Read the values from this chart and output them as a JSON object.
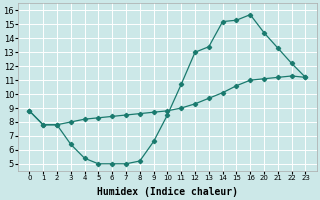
{
  "xlabel": "Humidex (Indice chaleur)",
  "bg_color": "#cce8e8",
  "grid_color": "#ffffff",
  "line_color": "#1a7a6e",
  "marker_color": "#1a7a6e",
  "ylim": [
    4.5,
    16.5
  ],
  "yticks": [
    5,
    6,
    7,
    8,
    9,
    10,
    11,
    12,
    13,
    14,
    15,
    16
  ],
  "xtick_labels": [
    "0",
    "1",
    "2",
    "3",
    "4",
    "5",
    "6",
    "7",
    "8",
    "9",
    "10",
    "11",
    "12",
    "13",
    "14",
    "15",
    "16",
    "20",
    "21",
    "22",
    "23"
  ],
  "line1_idx": [
    0,
    1,
    2,
    3,
    4,
    5,
    6,
    7,
    8,
    9,
    10,
    11,
    12,
    13,
    14,
    15,
    16,
    17,
    18,
    19,
    20
  ],
  "line1_y": [
    8.8,
    7.8,
    7.8,
    8.0,
    8.2,
    8.3,
    8.4,
    8.5,
    8.6,
    8.7,
    8.8,
    9.0,
    9.3,
    9.7,
    10.1,
    10.6,
    11.0,
    11.1,
    11.2,
    11.3,
    11.2
  ],
  "line2_idx": [
    0,
    1,
    2,
    3,
    4,
    5,
    6,
    7,
    8,
    9,
    10,
    11,
    12,
    13,
    14,
    15,
    16,
    17,
    18,
    19,
    20
  ],
  "line2_y": [
    8.8,
    7.8,
    7.8,
    6.4,
    5.4,
    5.0,
    5.0,
    5.0,
    5.2,
    6.6,
    8.5,
    10.7,
    13.0,
    13.4,
    15.2,
    15.3,
    15.7,
    14.4,
    13.3,
    12.2,
    11.2
  ],
  "fontsize_label": 7,
  "fontsize_tick": 5
}
